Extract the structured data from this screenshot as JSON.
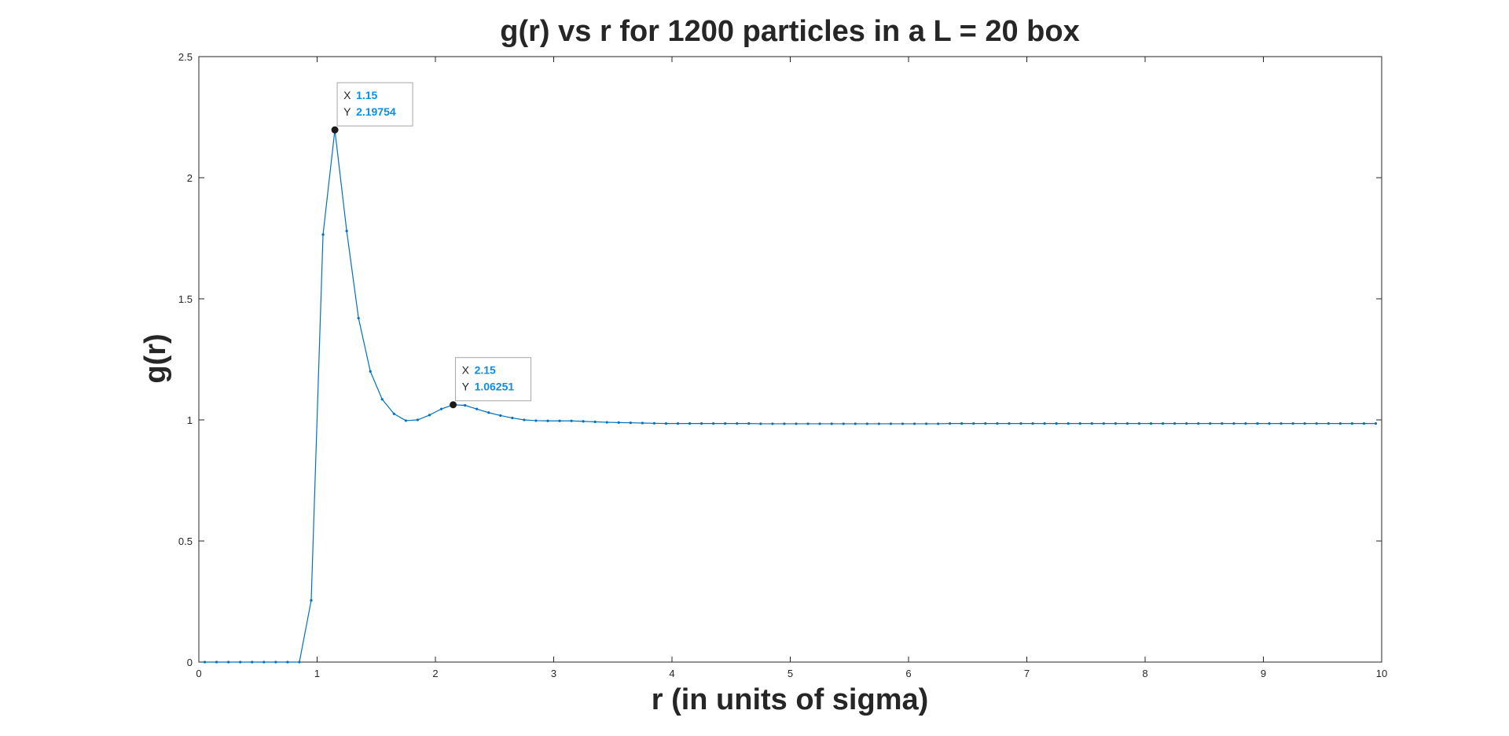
{
  "chart_data": {
    "type": "line",
    "title": "g(r) vs r for 1200 particles in a L = 20 box",
    "xlabel": "r (in units of sigma)",
    "ylabel": "g(r)",
    "xlim": [
      0,
      10
    ],
    "ylim": [
      0,
      2.5
    ],
    "xticks": [
      "0",
      "1",
      "2",
      "3",
      "4",
      "5",
      "6",
      "7",
      "8",
      "9",
      "10"
    ],
    "yticks": [
      "0",
      "0.5",
      "1",
      "1.5",
      "2",
      "2.5"
    ],
    "grid": false,
    "color": "#0072BD",
    "series": [
      {
        "x": [
          0.05,
          0.15,
          0.25,
          0.35,
          0.45,
          0.55,
          0.65,
          0.75,
          0.85,
          0.95,
          1.05,
          1.15,
          1.25,
          1.35,
          1.45,
          1.55,
          1.65,
          1.75,
          1.85,
          1.95,
          2.05,
          2.15,
          2.25,
          2.35,
          2.45,
          2.55,
          2.65,
          2.75,
          2.85,
          2.95,
          3.05,
          3.15,
          3.25,
          3.35,
          3.45,
          3.55,
          3.65,
          3.75,
          3.85,
          3.95,
          4.05,
          4.15,
          4.25,
          4.35,
          4.45,
          4.55,
          4.65,
          4.75,
          4.85,
          4.95,
          5.05,
          5.15,
          5.25,
          5.35,
          5.45,
          5.55,
          5.65,
          5.75,
          5.85,
          5.95,
          6.05,
          6.15,
          6.25,
          6.35,
          6.45,
          6.55,
          6.65,
          6.75,
          6.85,
          6.95,
          7.05,
          7.15,
          7.25,
          7.35,
          7.45,
          7.55,
          7.65,
          7.75,
          7.85,
          7.95,
          8.05,
          8.15,
          8.25,
          8.35,
          8.45,
          8.55,
          8.65,
          8.75,
          8.85,
          8.95,
          9.05,
          9.15,
          9.25,
          9.35,
          9.45,
          9.55,
          9.65,
          9.75,
          9.85,
          9.95
        ],
        "y": [
          0,
          0,
          0,
          0,
          0,
          0,
          0,
          0,
          0,
          0.255,
          1.765,
          2.19754,
          1.78,
          1.42,
          1.2,
          1.085,
          1.025,
          0.997,
          1.0,
          1.02,
          1.045,
          1.06251,
          1.06,
          1.045,
          1.03,
          1.018,
          1.008,
          1.0,
          0.997,
          0.996,
          0.996,
          0.996,
          0.994,
          0.992,
          0.99,
          0.989,
          0.988,
          0.987,
          0.986,
          0.985,
          0.985,
          0.985,
          0.985,
          0.985,
          0.985,
          0.985,
          0.985,
          0.984,
          0.984,
          0.984,
          0.984,
          0.984,
          0.984,
          0.984,
          0.984,
          0.984,
          0.984,
          0.984,
          0.984,
          0.984,
          0.984,
          0.984,
          0.984,
          0.985,
          0.985,
          0.985,
          0.985,
          0.985,
          0.985,
          0.985,
          0.985,
          0.985,
          0.985,
          0.985,
          0.985,
          0.985,
          0.985,
          0.985,
          0.985,
          0.985,
          0.985,
          0.985,
          0.985,
          0.985,
          0.985,
          0.985,
          0.985,
          0.985,
          0.985,
          0.985,
          0.985,
          0.985,
          0.985,
          0.985,
          0.985,
          0.985,
          0.985,
          0.985,
          0.985,
          0.985
        ]
      }
    ],
    "datatips": [
      {
        "x_label": "X",
        "x_value": "1.15",
        "y_label": "Y",
        "y_value": "2.19754",
        "x": 1.15,
        "y": 2.19754
      },
      {
        "x_label": "X",
        "x_value": "2.15",
        "y_label": "Y",
        "y_value": "1.06251",
        "x": 2.15,
        "y": 1.06251
      }
    ]
  }
}
